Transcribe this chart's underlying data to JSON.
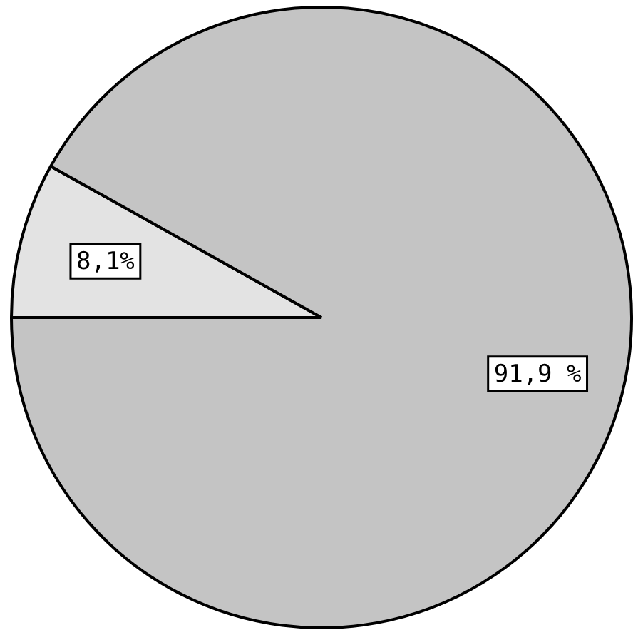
{
  "chart_data": {
    "type": "pie",
    "categories": [
      null,
      null
    ],
    "values": [
      8.1,
      91.9
    ],
    "colors": [
      "#e3e3e3",
      "#c4c4c4"
    ],
    "value_labels": [
      "8,1%",
      "91,9 %"
    ]
  }
}
